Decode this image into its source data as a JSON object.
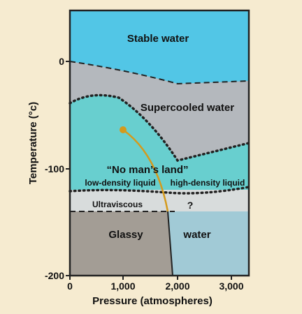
{
  "axes": {
    "x_title": "Pressure (atmospheres)",
    "y_title": "Temperature (°c)",
    "x_ticks": [
      "0",
      "1,000",
      "2,000",
      "3,000"
    ],
    "y_ticks": [
      "0",
      "-100",
      "-200"
    ]
  },
  "regions": {
    "stable_water": "Stable water",
    "supercooled_water": "Supercooled water",
    "no_mans_land": "“No man’s land”",
    "low_density_liquid": "low-density liquid",
    "high_density_liquid": "high-density liquid",
    "ultraviscous": "Ultraviscous",
    "unknown": "?",
    "glassy": "Glassy",
    "water": "water"
  },
  "colors": {
    "page_background": "#f6ebd0",
    "stable_water": "#52c6e6",
    "supercooled": "#b4b8bd",
    "no_mans_land": "#68cfcf",
    "ultraviscous": "#d8dcdc",
    "glassy": "#a39d95",
    "glassy_water": "#a1cad6",
    "critical_point": "#d49a1c"
  }
}
